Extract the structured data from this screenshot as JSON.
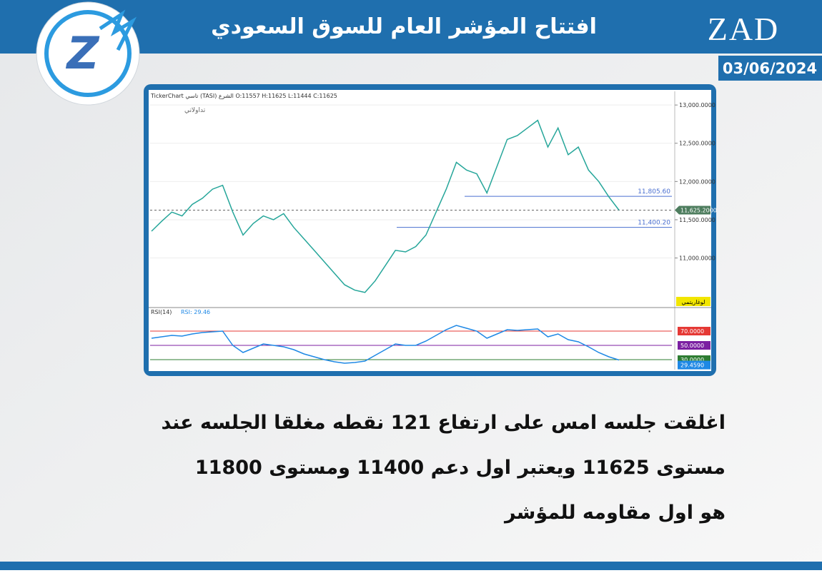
{
  "header": {
    "title": "افتتاح المؤشر العام للسوق السعودي",
    "brand": "ZAD",
    "date": "03/06/2024"
  },
  "chart_data": {
    "type": "line",
    "header": "TickerChart تاسي (TASI) الشرع O:11557 H:11625 L:11444 C:11625",
    "watermark": "تداولاتي",
    "scale_mode": "لوغاريتمي",
    "values": [
      11350,
      11480,
      11600,
      11550,
      11700,
      11780,
      11900,
      11950,
      11600,
      11300,
      11450,
      11550,
      11500,
      11580,
      11400,
      11250,
      11100,
      10950,
      10800,
      10650,
      10580,
      10550,
      10700,
      10900,
      11100,
      11080,
      11150,
      11300,
      11600,
      11900,
      12250,
      12150,
      12100,
      11850,
      12200,
      12550,
      12600,
      12700,
      12800,
      12450,
      12700,
      12350,
      12450,
      12150,
      12000,
      11800,
      11625.2
    ],
    "color": "#26a69a",
    "ylim": [
      10380,
      13160
    ],
    "yticks": [
      {
        "value": 11000,
        "label": "11,000.0000"
      },
      {
        "value": 11500,
        "label": "11,500.0000"
      },
      {
        "value": 12000,
        "label": "12,000.0000"
      },
      {
        "value": 12500,
        "label": "12,500.0000"
      },
      {
        "value": 13000,
        "label": "13,000.0000"
      }
    ],
    "current": {
      "value": 11625.2,
      "label": "11,625.2000"
    },
    "levels": [
      {
        "value": 11805.6,
        "label": "11,805.60"
      },
      {
        "value": 11400.2,
        "label": "11,400.20"
      }
    ],
    "rsi": {
      "title": "RSI(14)",
      "reading": "RSI: 29.46",
      "color": "#1e88e5",
      "values": [
        60,
        62,
        64,
        63,
        66,
        68,
        69,
        70,
        50,
        40,
        46,
        52,
        50,
        48,
        44,
        38,
        34,
        30,
        27,
        25,
        26,
        28,
        36,
        44,
        52,
        50,
        50,
        56,
        64,
        72,
        78,
        74,
        70,
        60,
        66,
        72,
        71,
        72,
        73,
        62,
        66,
        58,
        55,
        48,
        40,
        34,
        29.459
      ],
      "ylim": [
        19,
        102
      ],
      "yticks": [
        {
          "value": 70,
          "label": "70.0000"
        },
        {
          "value": 50,
          "label": "50.0000"
        },
        {
          "value": 30,
          "label": "30.0000"
        }
      ],
      "level_colors": [
        "#e53935",
        "#7b1fa2",
        "#2e7d32"
      ],
      "current": {
        "value": 29.459,
        "label": "29.4590"
      }
    }
  },
  "body": {
    "lines": [
      "اغلقت جلسه امس  على ارتفاع 121 نقطه  مغلقا الجلسه عند",
      "مستوى 11625  ويعتبر اول دعم 11400 ومستوى 11800",
      "هو اول مقاومه للمؤشر"
    ]
  }
}
